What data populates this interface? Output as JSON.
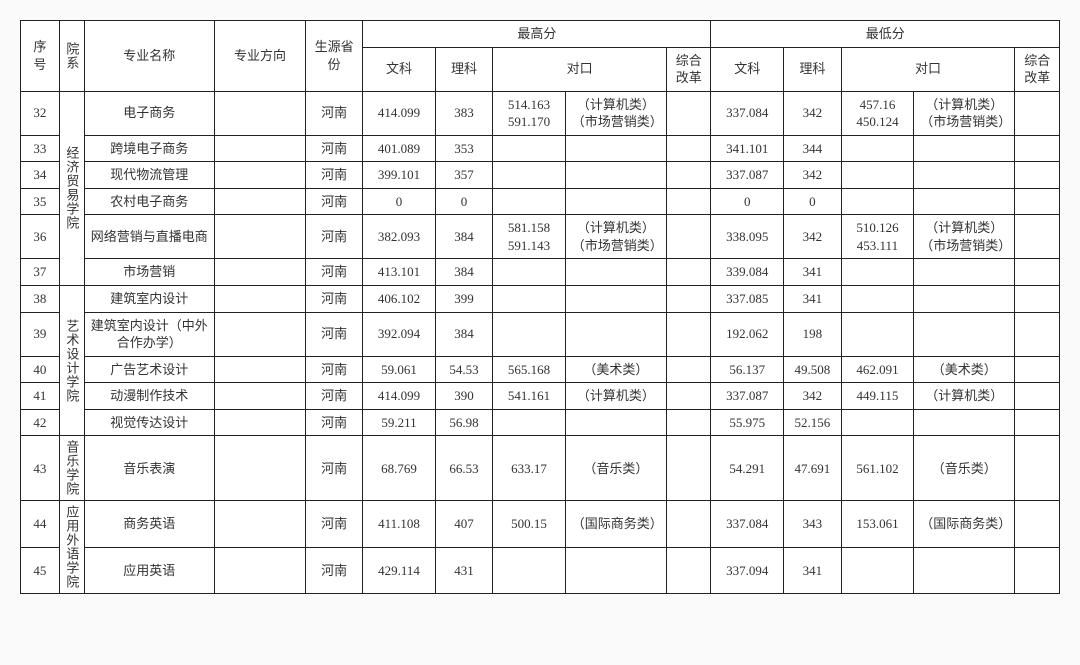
{
  "headers": {
    "seq": "序号",
    "dept": "院系",
    "major": "专业名称",
    "direction": "专业方向",
    "province": "生源省份",
    "max": "最高分",
    "min": "最低分",
    "wen": "文科",
    "li": "理科",
    "dk": "对口",
    "zh": "综合改革"
  },
  "depts": {
    "d1": "经济贸易学院",
    "d2": "艺术设计学院",
    "d3": "音乐学院",
    "d4": "应用外语学院"
  },
  "rows": [
    {
      "seq": "32",
      "major": "电子商务",
      "prov": "河南",
      "max_wen": "414.099",
      "max_li": "383",
      "max_dk1": "514.163\n591.170",
      "max_dk2": "（计算机类）\n（市场营销类）",
      "max_zh": "",
      "min_wen": "337.084",
      "min_li": "342",
      "min_dk1": "457.16\n450.124",
      "min_dk2": "（计算机类）\n（市场营销类）",
      "min_zh": ""
    },
    {
      "seq": "33",
      "major": "跨境电子商务",
      "prov": "河南",
      "max_wen": "401.089",
      "max_li": "353",
      "max_dk1": "",
      "max_dk2": "",
      "max_zh": "",
      "min_wen": "341.101",
      "min_li": "344",
      "min_dk1": "",
      "min_dk2": "",
      "min_zh": ""
    },
    {
      "seq": "34",
      "major": "现代物流管理",
      "prov": "河南",
      "max_wen": "399.101",
      "max_li": "357",
      "max_dk1": "",
      "max_dk2": "",
      "max_zh": "",
      "min_wen": "337.087",
      "min_li": "342",
      "min_dk1": "",
      "min_dk2": "",
      "min_zh": ""
    },
    {
      "seq": "35",
      "major": "农村电子商务",
      "prov": "河南",
      "max_wen": "0",
      "max_li": "0",
      "max_dk1": "",
      "max_dk2": "",
      "max_zh": "",
      "min_wen": "0",
      "min_li": "0",
      "min_dk1": "",
      "min_dk2": "",
      "min_zh": ""
    },
    {
      "seq": "36",
      "major": "网络营销与直播电商",
      "prov": "河南",
      "max_wen": "382.093",
      "max_li": "384",
      "max_dk1": "581.158\n591.143",
      "max_dk2": "（计算机类）\n（市场营销类）",
      "max_zh": "",
      "min_wen": "338.095",
      "min_li": "342",
      "min_dk1": "510.126\n453.111",
      "min_dk2": "（计算机类）\n（市场营销类）",
      "min_zh": ""
    },
    {
      "seq": "37",
      "major": "市场营销",
      "prov": "河南",
      "max_wen": "413.101",
      "max_li": "384",
      "max_dk1": "",
      "max_dk2": "",
      "max_zh": "",
      "min_wen": "339.084",
      "min_li": "341",
      "min_dk1": "",
      "min_dk2": "",
      "min_zh": ""
    },
    {
      "seq": "38",
      "major": "建筑室内设计",
      "prov": "河南",
      "max_wen": "406.102",
      "max_li": "399",
      "max_dk1": "",
      "max_dk2": "",
      "max_zh": "",
      "min_wen": "337.085",
      "min_li": "341",
      "min_dk1": "",
      "min_dk2": "",
      "min_zh": ""
    },
    {
      "seq": "39",
      "major": "建筑室内设计（中外合作办学）",
      "prov": "河南",
      "max_wen": "392.094",
      "max_li": "384",
      "max_dk1": "",
      "max_dk2": "",
      "max_zh": "",
      "min_wen": "192.062",
      "min_li": "198",
      "min_dk1": "",
      "min_dk2": "",
      "min_zh": ""
    },
    {
      "seq": "40",
      "major": "广告艺术设计",
      "prov": "河南",
      "max_wen": "59.061",
      "max_li": "54.53",
      "max_dk1": "565.168",
      "max_dk2": "（美术类）",
      "max_zh": "",
      "min_wen": "56.137",
      "min_li": "49.508",
      "min_dk1": "462.091",
      "min_dk2": "（美术类）",
      "min_zh": ""
    },
    {
      "seq": "41",
      "major": "动漫制作技术",
      "prov": "河南",
      "max_wen": "414.099",
      "max_li": "390",
      "max_dk1": "541.161",
      "max_dk2": "（计算机类）",
      "max_zh": "",
      "min_wen": "337.087",
      "min_li": "342",
      "min_dk1": "449.115",
      "min_dk2": "（计算机类）",
      "min_zh": ""
    },
    {
      "seq": "42",
      "major": "视觉传达设计",
      "prov": "河南",
      "max_wen": "59.211",
      "max_li": "56.98",
      "max_dk1": "",
      "max_dk2": "",
      "max_zh": "",
      "min_wen": "55.975",
      "min_li": "52.156",
      "min_dk1": "",
      "min_dk2": "",
      "min_zh": ""
    },
    {
      "seq": "43",
      "major": "音乐表演",
      "prov": "河南",
      "max_wen": "68.769",
      "max_li": "66.53",
      "max_dk1": "633.17",
      "max_dk2": "（音乐类）",
      "max_zh": "",
      "min_wen": "54.291",
      "min_li": "47.691",
      "min_dk1": "561.102",
      "min_dk2": "（音乐类）",
      "min_zh": ""
    },
    {
      "seq": "44",
      "major": "商务英语",
      "prov": "河南",
      "max_wen": "411.108",
      "max_li": "407",
      "max_dk1": "500.15",
      "max_dk2": "（国际商务类）",
      "max_zh": "",
      "min_wen": "337.084",
      "min_li": "343",
      "min_dk1": "153.061",
      "min_dk2": "（国际商务类）",
      "min_zh": ""
    },
    {
      "seq": "45",
      "major": "应用英语",
      "prov": "河南",
      "max_wen": "429.114",
      "max_li": "431",
      "max_dk1": "",
      "max_dk2": "",
      "max_zh": "",
      "min_wen": "337.094",
      "min_li": "341",
      "min_dk1": "",
      "min_dk2": "",
      "min_zh": ""
    }
  ],
  "style": {
    "background": "#fafafa",
    "border_color": "#222222",
    "font_family": "SimSun",
    "font_size_pt": 13
  }
}
